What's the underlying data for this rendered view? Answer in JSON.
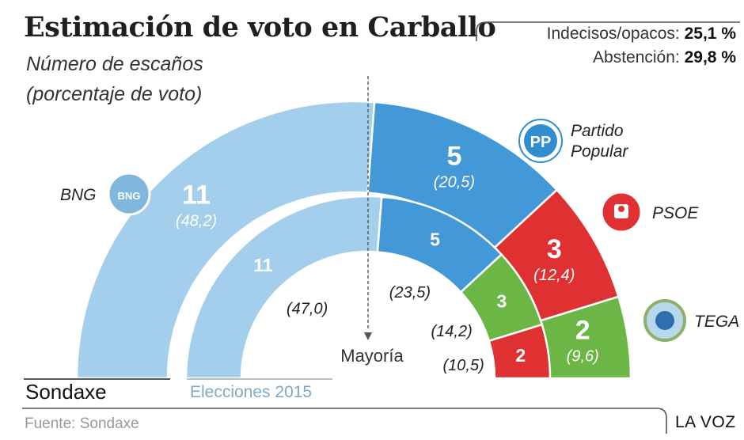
{
  "title": "Estimación de voto en Carballo",
  "subtitle_line1": "Número de escaños",
  "subtitle_line2": "(porcentaje de voto)",
  "summary": {
    "undecided_label": "Indecisos/opacos:",
    "undecided_value": "25,1 %",
    "abstention_label": "Abstención:",
    "abstention_value": "29,8 %"
  },
  "majority_label": "Mayoría",
  "source": "Fuente: Sondaxe",
  "brand": "LA VOZ",
  "colors": {
    "BNG": "#a4cfec",
    "PP": "#4398d7",
    "PSOE": "#df3131",
    "TEGA": "#6cb646",
    "majority_line": "#555555"
  },
  "icons": {
    "BNG": "bng-logo-icon",
    "PP": "pp-logo-icon",
    "PSOE": "psoe-logo-icon",
    "TEGA": "tega-logo-icon"
  },
  "chart_data": {
    "type": "semicircle-parliament",
    "title": "Estimación de voto en Carballo",
    "subtitle": "Número de escaños (porcentaje de voto)",
    "total_seats": 21,
    "majority_label": "Mayoría",
    "series": [
      {
        "name": "Sondaxe",
        "parties": [
          {
            "party": "BNG",
            "label": "BNG",
            "seats": 11,
            "seats_label": "11",
            "pct": 48.2,
            "pct_label": "(48,2)"
          },
          {
            "party": "PP",
            "label": "Partido Popular",
            "label_line1": "Partido",
            "label_line2": "Popular",
            "seats": 5,
            "seats_label": "5",
            "pct": 20.5,
            "pct_label": "(20,5)"
          },
          {
            "party": "PSOE",
            "label": "PSOE",
            "seats": 3,
            "seats_label": "3",
            "pct": 12.4,
            "pct_label": "(12,4)"
          },
          {
            "party": "TEGA",
            "label": "TEGA",
            "seats": 2,
            "seats_label": "2",
            "pct": 9.6,
            "pct_label": "(9,6)"
          }
        ]
      },
      {
        "name": "Elecciones 2015",
        "parties": [
          {
            "party": "BNG",
            "seats": 11,
            "seats_label": "11",
            "pct": 47.0,
            "pct_label": "(47,0)"
          },
          {
            "party": "PP",
            "seats": 5,
            "seats_label": "5",
            "pct": 23.5,
            "pct_label": "(23,5)"
          },
          {
            "party": "TEGA",
            "seats": 3,
            "seats_label": "3",
            "pct": 14.2,
            "pct_label": "(14,2)"
          },
          {
            "party": "PSOE",
            "seats": 2,
            "seats_label": "2",
            "pct": 10.5,
            "pct_label": "(10,5)"
          }
        ]
      }
    ]
  }
}
